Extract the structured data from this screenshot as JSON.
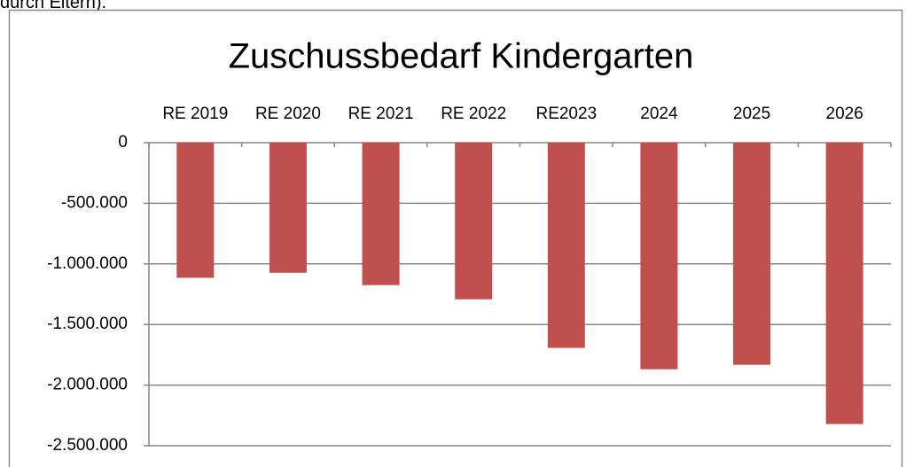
{
  "intro_text": "durch Eltern).",
  "chart_data": {
    "type": "bar",
    "title": "Zuschussbedarf Kindergarten",
    "categories": [
      "RE 2019",
      "RE 2020",
      "RE 2021",
      "RE 2022",
      "RE2023",
      "2024",
      "2025",
      "2026"
    ],
    "values": [
      -1115000,
      -1073000,
      -1175000,
      -1292000,
      -1693000,
      -1869000,
      -1832000,
      -2321000
    ],
    "color": "#c0504d",
    "ylim": [
      -2500000,
      0
    ],
    "yticks": [
      {
        "value": -2500000,
        "label": "-2.500.000"
      },
      {
        "value": -2000000,
        "label": "-2.000.000"
      },
      {
        "value": -1500000,
        "label": "-1.500.000"
      },
      {
        "value": -1000000,
        "label": "-1.000.000"
      },
      {
        "value": -500000,
        "label": "-500.000"
      },
      0
    ],
    "grid": true
  }
}
